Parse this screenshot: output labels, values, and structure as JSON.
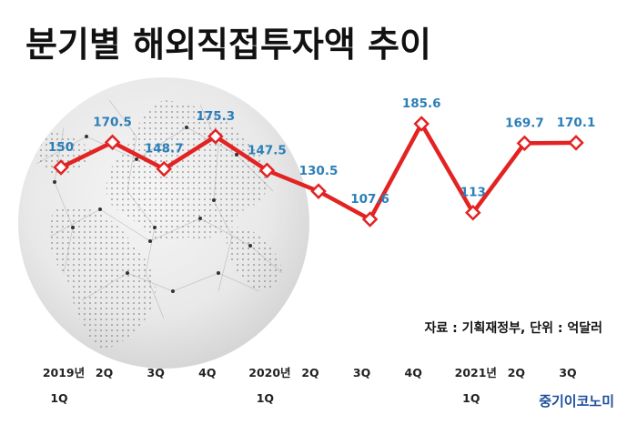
{
  "chart_data": {
    "type": "line",
    "title": "분기별 해외직접투자액 추이",
    "categories": [
      [
        "2019년",
        "1Q"
      ],
      [
        "2Q"
      ],
      [
        "3Q"
      ],
      [
        "4Q"
      ],
      [
        "2020년",
        "1Q"
      ],
      [
        "2Q"
      ],
      [
        "3Q"
      ],
      [
        "4Q"
      ],
      [
        "2021년",
        "1Q"
      ],
      [
        "2Q"
      ],
      [
        "3Q"
      ]
    ],
    "series": [
      {
        "values": [
          150,
          170.5,
          148.7,
          175.3,
          147.5,
          130.5,
          107.6,
          185.6,
          113,
          169.7,
          170.1
        ],
        "labels": [
          "150",
          "170.5",
          "148.7",
          "175.3",
          "147.5",
          "130.5",
          "107.6",
          "185.6",
          "113",
          "169.7",
          "170.1"
        ]
      }
    ],
    "ylim": [
      100,
      190
    ],
    "grid": false,
    "legend": "none",
    "line_color": "#e32222",
    "marker_fill": "#ffffff",
    "label_color": "#2b7fb8"
  },
  "source": "자료 : 기획재정부, 단위 : 억달러",
  "brand": "중기이코노미",
  "background_image": "dotted-world-globe"
}
